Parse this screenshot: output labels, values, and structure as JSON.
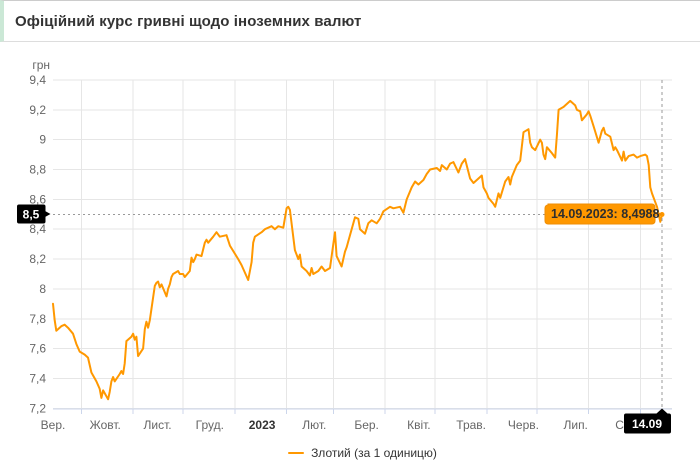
{
  "page": {
    "title": "Офіційний курс гривні щодо іноземних валют"
  },
  "colors": {
    "line": "#ff9800",
    "tooltip_bg": "#ff9800",
    "badge_bg": "#000000",
    "badge_text": "#ffffff",
    "accent_border": "#cbe8d6",
    "grid": "#e6e6e6",
    "axis_line": "#ccd6eb",
    "crosshair": "#999999",
    "muted_text": "#666666"
  },
  "legend": {
    "items": [
      {
        "label": "Злотий (за 1 одиницю)",
        "color": "#ff9800"
      }
    ]
  },
  "chart_data": {
    "type": "line",
    "title": "Офіційний курс гривні щодо іноземних валют",
    "xlabel": "",
    "ylabel": "грн",
    "grid": true,
    "legend_position": "bottom",
    "xlim": [
      "2022-09-14",
      "2023-09-14"
    ],
    "ylim": [
      7.2,
      9.4
    ],
    "y_ticks": [
      {
        "value": 9.4,
        "label": "9,4"
      },
      {
        "value": 9.2,
        "label": "9,2"
      },
      {
        "value": 9.0,
        "label": "9"
      },
      {
        "value": 8.8,
        "label": "8,8"
      },
      {
        "value": 8.6,
        "label": "8,6"
      },
      {
        "value": 8.4,
        "label": "8,4"
      },
      {
        "value": 8.2,
        "label": "8,2"
      },
      {
        "value": 8.0,
        "label": "8"
      },
      {
        "value": 7.8,
        "label": "7,8"
      },
      {
        "value": 7.6,
        "label": "7,6"
      },
      {
        "value": 7.4,
        "label": "7,4"
      },
      {
        "value": 7.2,
        "label": "7,2"
      }
    ],
    "x_labels": [
      {
        "label": "Вер.",
        "bold": false
      },
      {
        "label": "Жовт.",
        "bold": false
      },
      {
        "label": "Лист.",
        "bold": false
      },
      {
        "label": "Груд.",
        "bold": false
      },
      {
        "label": "2023",
        "bold": true
      },
      {
        "label": "Лют.",
        "bold": false
      },
      {
        "label": "Бер.",
        "bold": false
      },
      {
        "label": "Квіт.",
        "bold": false
      },
      {
        "label": "Трав.",
        "bold": false
      },
      {
        "label": "Черв.",
        "bold": false
      },
      {
        "label": "Лип.",
        "bold": false
      },
      {
        "label": "Сер.",
        "bold": false
      }
    ],
    "month_gridlines": [
      "2022-10-01",
      "2022-11-01",
      "2022-12-01",
      "2023-01-01",
      "2023-02-01",
      "2023-03-01",
      "2023-04-01",
      "2023-05-01",
      "2023-06-01",
      "2023-07-01",
      "2023-08-01",
      "2023-09-01"
    ],
    "annotations": {
      "current_level": {
        "value": 8.4988,
        "axis_label": "8,5"
      },
      "current_date": {
        "date": "2023-09-14",
        "axis_label": "14.09"
      },
      "tooltip": {
        "text": "14.09.2023: 8,4988"
      }
    },
    "series": [
      {
        "name": "Злотий (за 1 одиницю)",
        "color": "#ff9800",
        "points": [
          [
            "2022-09-14",
            7.9
          ],
          [
            "2022-09-15",
            7.79
          ],
          [
            "2022-09-16",
            7.72
          ],
          [
            "2022-09-19",
            7.75
          ],
          [
            "2022-09-21",
            7.76
          ],
          [
            "2022-09-23",
            7.74
          ],
          [
            "2022-09-26",
            7.7
          ],
          [
            "2022-09-28",
            7.63
          ],
          [
            "2022-09-30",
            7.58
          ],
          [
            "2022-10-03",
            7.56
          ],
          [
            "2022-10-05",
            7.54
          ],
          [
            "2022-10-07",
            7.44
          ],
          [
            "2022-10-10",
            7.38
          ],
          [
            "2022-10-12",
            7.33
          ],
          [
            "2022-10-13",
            7.27
          ],
          [
            "2022-10-14",
            7.32
          ],
          [
            "2022-10-17",
            7.26
          ],
          [
            "2022-10-18",
            7.31
          ],
          [
            "2022-10-19",
            7.38
          ],
          [
            "2022-10-20",
            7.41
          ],
          [
            "2022-10-21",
            7.38
          ],
          [
            "2022-10-24",
            7.43
          ],
          [
            "2022-10-25",
            7.45
          ],
          [
            "2022-10-26",
            7.43
          ],
          [
            "2022-10-27",
            7.5
          ],
          [
            "2022-10-28",
            7.65
          ],
          [
            "2022-10-31",
            7.68
          ],
          [
            "2022-11-01",
            7.7
          ],
          [
            "2022-11-02",
            7.66
          ],
          [
            "2022-11-03",
            7.68
          ],
          [
            "2022-11-04",
            7.55
          ],
          [
            "2022-11-07",
            7.6
          ],
          [
            "2022-11-08",
            7.73
          ],
          [
            "2022-11-09",
            7.78
          ],
          [
            "2022-11-10",
            7.74
          ],
          [
            "2022-11-11",
            7.79
          ],
          [
            "2022-11-14",
            8.02
          ],
          [
            "2022-11-15",
            8.04
          ],
          [
            "2022-11-16",
            8.05
          ],
          [
            "2022-11-17",
            8.01
          ],
          [
            "2022-11-18",
            8.03
          ],
          [
            "2022-11-21",
            7.95
          ],
          [
            "2022-11-22",
            8.0
          ],
          [
            "2022-11-23",
            8.03
          ],
          [
            "2022-11-24",
            8.08
          ],
          [
            "2022-11-25",
            8.1
          ],
          [
            "2022-11-28",
            8.12
          ],
          [
            "2022-11-29",
            8.1
          ],
          [
            "2022-12-01",
            8.1
          ],
          [
            "2022-12-02",
            8.08
          ],
          [
            "2022-12-05",
            8.12
          ],
          [
            "2022-12-06",
            8.21
          ],
          [
            "2022-12-07",
            8.18
          ],
          [
            "2022-12-08",
            8.2
          ],
          [
            "2022-12-09",
            8.23
          ],
          [
            "2022-12-12",
            8.22
          ],
          [
            "2022-12-14",
            8.31
          ],
          [
            "2022-12-15",
            8.33
          ],
          [
            "2022-12-16",
            8.31
          ],
          [
            "2022-12-19",
            8.35
          ],
          [
            "2022-12-21",
            8.38
          ],
          [
            "2022-12-23",
            8.35
          ],
          [
            "2022-12-27",
            8.36
          ],
          [
            "2022-12-29",
            8.29
          ],
          [
            "2023-01-03",
            8.2
          ],
          [
            "2023-01-05",
            8.16
          ],
          [
            "2023-01-09",
            8.06
          ],
          [
            "2023-01-11",
            8.18
          ],
          [
            "2023-01-12",
            8.31
          ],
          [
            "2023-01-13",
            8.35
          ],
          [
            "2023-01-17",
            8.38
          ],
          [
            "2023-01-19",
            8.4
          ],
          [
            "2023-01-23",
            8.42
          ],
          [
            "2023-01-25",
            8.4
          ],
          [
            "2023-01-27",
            8.42
          ],
          [
            "2023-01-30",
            8.41
          ],
          [
            "2023-02-01",
            8.54
          ],
          [
            "2023-02-02",
            8.55
          ],
          [
            "2023-02-03",
            8.53
          ],
          [
            "2023-02-06",
            8.26
          ],
          [
            "2023-02-08",
            8.2
          ],
          [
            "2023-02-09",
            8.23
          ],
          [
            "2023-02-10",
            8.15
          ],
          [
            "2023-02-13",
            8.12
          ],
          [
            "2023-02-15",
            8.09
          ],
          [
            "2023-02-16",
            8.14
          ],
          [
            "2023-02-17",
            8.1
          ],
          [
            "2023-02-20",
            8.12
          ],
          [
            "2023-02-22",
            8.15
          ],
          [
            "2023-02-24",
            8.12
          ],
          [
            "2023-02-27",
            8.14
          ],
          [
            "2023-03-01",
            8.3
          ],
          [
            "2023-03-02",
            8.38
          ],
          [
            "2023-03-03",
            8.22
          ],
          [
            "2023-03-06",
            8.15
          ],
          [
            "2023-03-08",
            8.25
          ],
          [
            "2023-03-09",
            8.28
          ],
          [
            "2023-03-10",
            8.32
          ],
          [
            "2023-03-14",
            8.48
          ],
          [
            "2023-03-16",
            8.47
          ],
          [
            "2023-03-17",
            8.4
          ],
          [
            "2023-03-20",
            8.37
          ],
          [
            "2023-03-22",
            8.44
          ],
          [
            "2023-03-24",
            8.46
          ],
          [
            "2023-03-27",
            8.44
          ],
          [
            "2023-03-29",
            8.47
          ],
          [
            "2023-03-31",
            8.52
          ],
          [
            "2023-04-04",
            8.55
          ],
          [
            "2023-04-06",
            8.54
          ],
          [
            "2023-04-10",
            8.55
          ],
          [
            "2023-04-12",
            8.51
          ],
          [
            "2023-04-14",
            8.6
          ],
          [
            "2023-04-17",
            8.68
          ],
          [
            "2023-04-19",
            8.72
          ],
          [
            "2023-04-21",
            8.7
          ],
          [
            "2023-04-24",
            8.73
          ],
          [
            "2023-04-26",
            8.77
          ],
          [
            "2023-04-28",
            8.8
          ],
          [
            "2023-05-02",
            8.81
          ],
          [
            "2023-05-04",
            8.79
          ],
          [
            "2023-05-05",
            8.83
          ],
          [
            "2023-05-08",
            8.8
          ],
          [
            "2023-05-10",
            8.84
          ],
          [
            "2023-05-12",
            8.85
          ],
          [
            "2023-05-15",
            8.78
          ],
          [
            "2023-05-17",
            8.84
          ],
          [
            "2023-05-19",
            8.87
          ],
          [
            "2023-05-22",
            8.74
          ],
          [
            "2023-05-24",
            8.71
          ],
          [
            "2023-05-26",
            8.73
          ],
          [
            "2023-05-29",
            8.76
          ],
          [
            "2023-05-30",
            8.68
          ],
          [
            "2023-06-01",
            8.64
          ],
          [
            "2023-06-02",
            8.61
          ],
          [
            "2023-06-05",
            8.57
          ],
          [
            "2023-06-06",
            8.55
          ],
          [
            "2023-06-08",
            8.64
          ],
          [
            "2023-06-09",
            8.61
          ],
          [
            "2023-06-12",
            8.72
          ],
          [
            "2023-06-14",
            8.75
          ],
          [
            "2023-06-15",
            8.7
          ],
          [
            "2023-06-16",
            8.75
          ],
          [
            "2023-06-19",
            8.83
          ],
          [
            "2023-06-21",
            8.86
          ],
          [
            "2023-06-23",
            9.05
          ],
          [
            "2023-06-26",
            9.07
          ],
          [
            "2023-06-27",
            8.98
          ],
          [
            "2023-06-28",
            8.95
          ],
          [
            "2023-06-30",
            8.93
          ],
          [
            "2023-07-03",
            9.0
          ],
          [
            "2023-07-04",
            8.98
          ],
          [
            "2023-07-05",
            8.9
          ],
          [
            "2023-07-06",
            8.87
          ],
          [
            "2023-07-07",
            8.95
          ],
          [
            "2023-07-10",
            8.91
          ],
          [
            "2023-07-12",
            8.88
          ],
          [
            "2023-07-13",
            9.03
          ],
          [
            "2023-07-14",
            9.2
          ],
          [
            "2023-07-17",
            9.22
          ],
          [
            "2023-07-19",
            9.24
          ],
          [
            "2023-07-21",
            9.26
          ],
          [
            "2023-07-24",
            9.23
          ],
          [
            "2023-07-25",
            9.2
          ],
          [
            "2023-07-27",
            9.19
          ],
          [
            "2023-07-28",
            9.13
          ],
          [
            "2023-07-31",
            9.17
          ],
          [
            "2023-08-01",
            9.19
          ],
          [
            "2023-08-02",
            9.16
          ],
          [
            "2023-08-04",
            9.09
          ],
          [
            "2023-08-07",
            8.98
          ],
          [
            "2023-08-09",
            9.06
          ],
          [
            "2023-08-10",
            9.08
          ],
          [
            "2023-08-11",
            9.04
          ],
          [
            "2023-08-14",
            9.02
          ],
          [
            "2023-08-16",
            8.93
          ],
          [
            "2023-08-17",
            8.95
          ],
          [
            "2023-08-18",
            8.93
          ],
          [
            "2023-08-21",
            8.86
          ],
          [
            "2023-08-22",
            8.92
          ],
          [
            "2023-08-23",
            8.86
          ],
          [
            "2023-08-25",
            8.89
          ],
          [
            "2023-08-28",
            8.9
          ],
          [
            "2023-08-30",
            8.88
          ],
          [
            "2023-09-01",
            8.89
          ],
          [
            "2023-09-04",
            8.9
          ],
          [
            "2023-09-05",
            8.89
          ],
          [
            "2023-09-06",
            8.83
          ],
          [
            "2023-09-07",
            8.68
          ],
          [
            "2023-09-08",
            8.64
          ],
          [
            "2023-09-11",
            8.55
          ],
          [
            "2023-09-12",
            8.5
          ],
          [
            "2023-09-13",
            8.45
          ],
          [
            "2023-09-14",
            8.4988
          ]
        ]
      }
    ]
  }
}
